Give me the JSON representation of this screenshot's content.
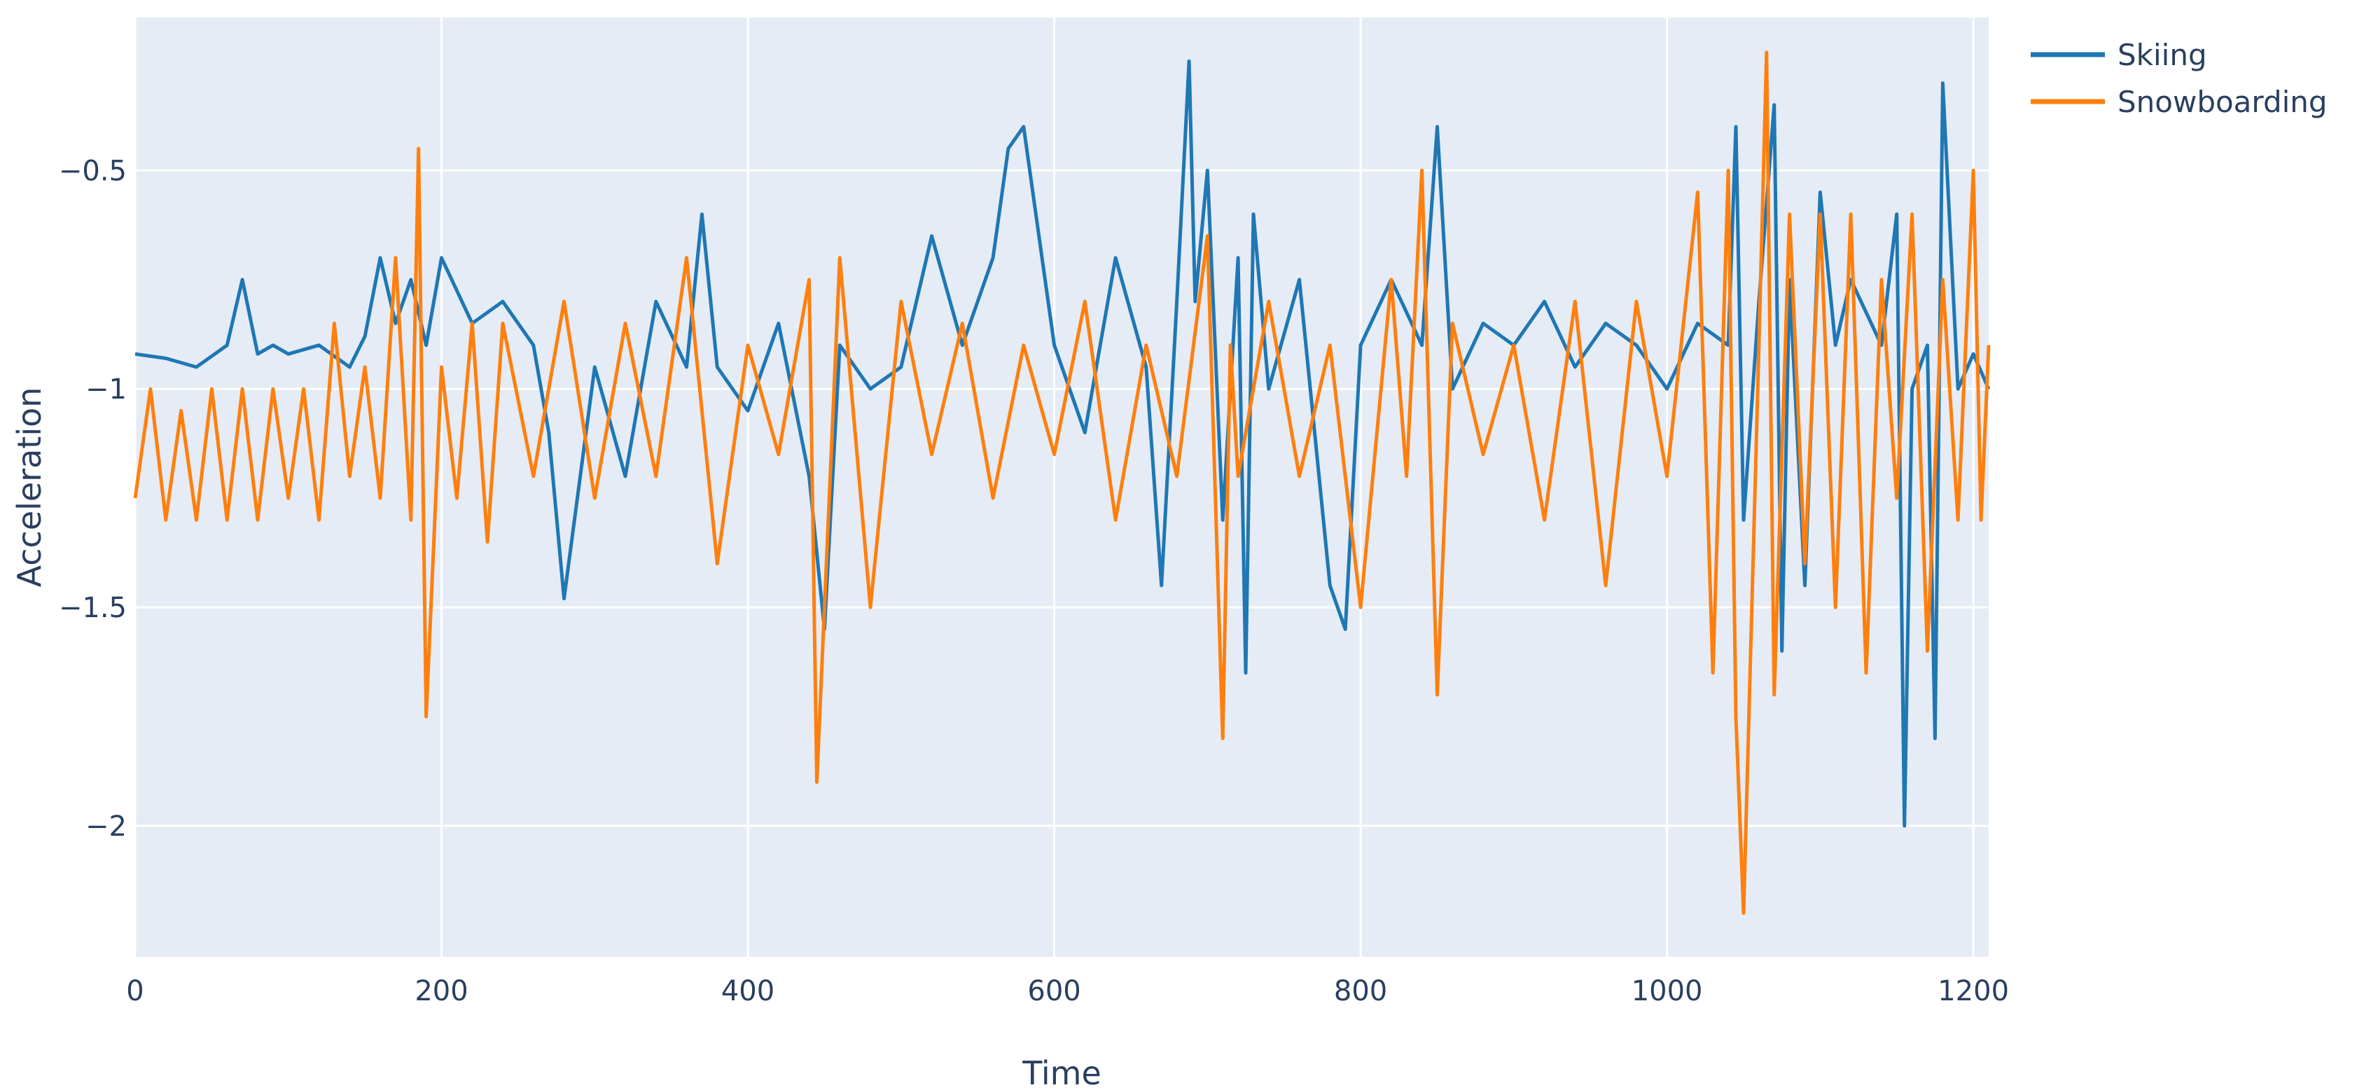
{
  "chart_data": {
    "type": "line",
    "xlabel": "Time",
    "ylabel": "Acceleration",
    "xlim": [
      0,
      1210
    ],
    "ylim": [
      -2.3,
      -0.15
    ],
    "x_ticks": [
      0,
      200,
      400,
      600,
      800,
      1000,
      1200
    ],
    "x_tick_labels": [
      "0",
      "200",
      "400",
      "600",
      "800",
      "1000",
      "1200"
    ],
    "y_ticks": [
      -0.5,
      -1,
      -1.5,
      -2
    ],
    "y_tick_labels": [
      "−0.5",
      "−1",
      "−1.5",
      "−2"
    ],
    "grid": true,
    "legend_position": "top-right",
    "series": [
      {
        "name": "Skiing",
        "color": "#1f77b4",
        "x": [
          0,
          20,
          40,
          60,
          70,
          80,
          90,
          100,
          120,
          140,
          150,
          160,
          170,
          180,
          190,
          200,
          220,
          240,
          260,
          270,
          280,
          300,
          320,
          340,
          360,
          370,
          380,
          400,
          420,
          440,
          450,
          460,
          480,
          500,
          520,
          540,
          560,
          570,
          580,
          600,
          620,
          640,
          660,
          670,
          680,
          688,
          692,
          700,
          710,
          720,
          725,
          730,
          740,
          760,
          780,
          790,
          800,
          820,
          840,
          850,
          860,
          880,
          900,
          920,
          940,
          960,
          980,
          1000,
          1020,
          1040,
          1045,
          1050,
          1060,
          1070,
          1075,
          1080,
          1090,
          1100,
          1110,
          1120,
          1140,
          1150,
          1155,
          1160,
          1170,
          1175,
          1180,
          1190,
          1200,
          1210
        ],
        "y": [
          -0.92,
          -0.93,
          -0.95,
          -0.9,
          -0.75,
          -0.92,
          -0.9,
          -0.92,
          -0.9,
          -0.95,
          -0.88,
          -0.7,
          -0.85,
          -0.75,
          -0.9,
          -0.7,
          -0.85,
          -0.8,
          -0.9,
          -1.1,
          -1.48,
          -0.95,
          -1.2,
          -0.8,
          -0.95,
          -0.6,
          -0.95,
          -1.05,
          -0.85,
          -1.2,
          -1.55,
          -0.9,
          -1.0,
          -0.95,
          -0.65,
          -0.9,
          -0.7,
          -0.45,
          -0.4,
          -0.9,
          -1.1,
          -0.7,
          -0.95,
          -1.45,
          -0.8,
          -0.25,
          -0.8,
          -0.5,
          -1.3,
          -0.7,
          -1.65,
          -0.6,
          -1.0,
          -0.75,
          -1.45,
          -1.55,
          -0.9,
          -0.75,
          -0.9,
          -0.4,
          -1.0,
          -0.85,
          -0.9,
          -0.8,
          -0.95,
          -0.85,
          -0.9,
          -1.0,
          -0.85,
          -0.9,
          -0.4,
          -1.3,
          -0.8,
          -0.35,
          -1.6,
          -0.75,
          -1.45,
          -0.55,
          -0.9,
          -0.75,
          -0.9,
          -0.6,
          -2.0,
          -1.0,
          -0.9,
          -1.8,
          -0.3,
          -1.0,
          -0.92,
          -1.0
        ]
      },
      {
        "name": "Snowboarding",
        "color": "#ff7f0e",
        "x": [
          0,
          10,
          20,
          30,
          40,
          50,
          60,
          70,
          80,
          90,
          100,
          110,
          120,
          130,
          140,
          150,
          160,
          170,
          180,
          185,
          190,
          200,
          210,
          220,
          230,
          240,
          260,
          280,
          300,
          320,
          340,
          360,
          380,
          400,
          420,
          440,
          445,
          450,
          460,
          470,
          480,
          500,
          520,
          540,
          560,
          580,
          600,
          620,
          640,
          660,
          680,
          700,
          710,
          715,
          720,
          740,
          760,
          780,
          800,
          820,
          830,
          840,
          850,
          860,
          880,
          900,
          920,
          940,
          960,
          980,
          1000,
          1020,
          1030,
          1040,
          1045,
          1050,
          1060,
          1065,
          1070,
          1080,
          1090,
          1100,
          1110,
          1120,
          1130,
          1140,
          1150,
          1160,
          1170,
          1180,
          1190,
          1200,
          1205,
          1210
        ],
        "y": [
          -1.25,
          -1.0,
          -1.3,
          -1.05,
          -1.3,
          -1.0,
          -1.3,
          -1.0,
          -1.3,
          -1.0,
          -1.25,
          -1.0,
          -1.3,
          -0.85,
          -1.2,
          -0.95,
          -1.25,
          -0.7,
          -1.3,
          -0.45,
          -1.75,
          -0.95,
          -1.25,
          -0.85,
          -1.35,
          -0.85,
          -1.2,
          -0.8,
          -1.25,
          -0.85,
          -1.2,
          -0.7,
          -1.4,
          -0.9,
          -1.15,
          -0.75,
          -1.9,
          -1.5,
          -0.7,
          -1.1,
          -1.5,
          -0.8,
          -1.15,
          -0.85,
          -1.25,
          -0.9,
          -1.15,
          -0.8,
          -1.3,
          -0.9,
          -1.2,
          -0.65,
          -1.8,
          -0.9,
          -1.2,
          -0.8,
          -1.2,
          -0.9,
          -1.5,
          -0.75,
          -1.2,
          -0.5,
          -1.7,
          -0.85,
          -1.15,
          -0.9,
          -1.3,
          -0.8,
          -1.45,
          -0.8,
          -1.2,
          -0.55,
          -1.65,
          -0.5,
          -1.75,
          -2.2,
          -0.9,
          -0.23,
          -1.7,
          -0.6,
          -1.4,
          -0.6,
          -1.5,
          -0.6,
          -1.65,
          -0.75,
          -1.25,
          -0.6,
          -1.6,
          -0.75,
          -1.3,
          -0.5,
          -1.3,
          -0.9
        ]
      }
    ]
  }
}
